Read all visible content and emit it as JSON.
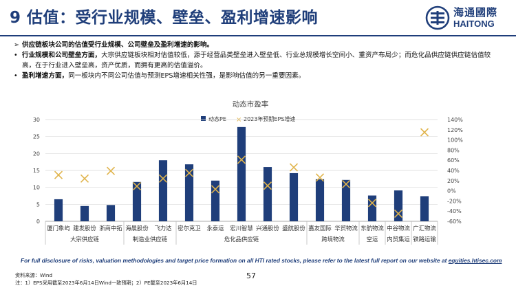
{
  "header": {
    "title": "9 估值：受行业规模、壁垒、盈利增速影响",
    "logo_cn": "海通國際",
    "logo_en": "HAITONG",
    "logo_color": "#1f3e7a"
  },
  "bullets": [
    {
      "marker": "➢",
      "bold": "供应链板块公司的估值受行业规模、公司壁垒及盈利增速的影响。",
      "text": ""
    },
    {
      "marker": "•",
      "bold": "行业规模和公司壁垒方面，",
      "text": "大宗供应链板块相对估值较低，源于经营品类壁垒进入壁垒低、行业总规模增长空间小、重资产布局少；而危化品供应链供应链估值较高，在于行业进入壁垒高，资产优质，而拥有更高的估值溢价。"
    },
    {
      "marker": "•",
      "bold": "盈利增速方面，",
      "text": "同一板块内不同公司估值与预测EPS增速相关性强，是影响估值的另一重要因素。"
    }
  ],
  "chart_data": {
    "type": "bar",
    "title": "动态市盈率",
    "categories": [
      "厦门象屿",
      "建发股份",
      "浙商中拓",
      "海晨股份",
      "飞力达",
      "密尔克卫",
      "永泰运",
      "宏川智慧",
      "兴通股份",
      "盛航股份",
      "嘉友国际",
      "华贸物流",
      "东航物流",
      "中谷物流",
      "广汇物流"
    ],
    "groups": [
      {
        "label": "大宗供应链",
        "start": 0,
        "end": 2
      },
      {
        "label": "制造业供应链",
        "start": 3,
        "end": 4
      },
      {
        "label": "危化品供应链",
        "start": 5,
        "end": 9
      },
      {
        "label": "跨境物流",
        "start": 10,
        "end": 11
      },
      {
        "label": "空运",
        "start": 12,
        "end": 12
      },
      {
        "label": "内贸集运",
        "start": 13,
        "end": 13
      },
      {
        "label": "铁路运输",
        "start": 14,
        "end": 14
      }
    ],
    "series": [
      {
        "name": "动态PE",
        "type": "bar",
        "axis": "left",
        "color": "#1f3e7a",
        "values": [
          6.5,
          4.5,
          4.8,
          11.6,
          18.0,
          16.8,
          12.0,
          27.8,
          16.0,
          14.2,
          12.4,
          12.2,
          7.6,
          9.1,
          7.4
        ]
      },
      {
        "name": "2023年预期EPS增速",
        "type": "marker",
        "axis": "right",
        "color": "#e0b44c",
        "values": [
          31,
          24,
          39,
          9,
          24,
          35,
          3,
          61,
          10,
          46,
          26,
          13,
          -24,
          -45,
          115
        ]
      }
    ],
    "ylim_left": [
      0,
      30
    ],
    "yticks_left": [
      "0",
      "5",
      "10",
      "15",
      "20",
      "25",
      "30"
    ],
    "ylim_right": [
      -60,
      140
    ],
    "yticks_right": [
      "-60%",
      "-40%",
      "-20%",
      "0%",
      "20%",
      "40%",
      "60%",
      "80%",
      "100%",
      "120%",
      "140%"
    ],
    "grid": true,
    "legend_position": "top-center"
  },
  "footer": {
    "disclosure_prefix": "For full disclosure of risks, valuation methodologies and target price formation on all HTI rated stocks, please refer to the latest full report on our website at ",
    "disclosure_link": "equities.htisec.com",
    "page_number": "57",
    "source": "资料来源：Wind",
    "note": "注：1）EPS采用截至2023年6月14日Wind一致预期；2）PE截至2023年6月14日"
  }
}
